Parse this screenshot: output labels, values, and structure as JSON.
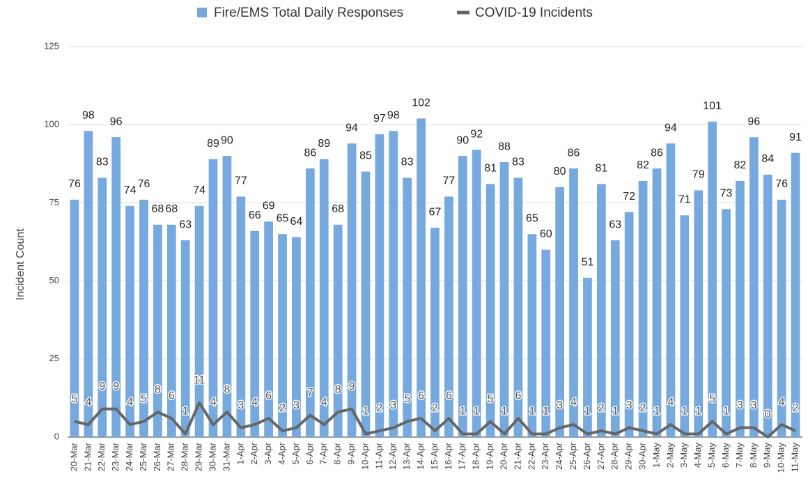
{
  "chart_data": {
    "type": "bar_line",
    "y_label": "Incident Count",
    "legend": "top",
    "grid": true,
    "ylim": [
      0,
      125
    ],
    "yticks": [
      0,
      25,
      50,
      75,
      100,
      125
    ],
    "categories": [
      "20-Mar",
      "21-Mar",
      "22-Mar",
      "23-Mar",
      "24-Mar",
      "25-Mar",
      "26-Mar",
      "27-Mar",
      "28-Mar",
      "29-Mar",
      "30-Mar",
      "31-Mar",
      "1-Apr",
      "2-Apr",
      "3-Apr",
      "4-Apr",
      "5-Apr",
      "6-Apr",
      "7-Apr",
      "8-Apr",
      "9-Apr",
      "10-Apr",
      "11-Apr",
      "12-Apr",
      "13-Apr",
      "14-Apr",
      "15-Apr",
      "16-Apr",
      "17-Apr",
      "18-Apr",
      "19-Apr",
      "20-Apr",
      "21-Apr",
      "22-Apr",
      "23-Apr",
      "24-Apr",
      "25-Apr",
      "26-Apr",
      "27-Apr",
      "28-Apr",
      "29-Apr",
      "30-Apr",
      "1-May",
      "2-May",
      "3-May",
      "4-May",
      "5-May",
      "6-May",
      "7-May",
      "8-May",
      "9-May",
      "10-May",
      "11-May"
    ],
    "series": [
      {
        "name": "Fire/EMS Total Daily Responses",
        "type": "bar",
        "color": "#76a9de",
        "values": [
          76,
          98,
          83,
          96,
          74,
          76,
          68,
          68,
          63,
          74,
          89,
          90,
          77,
          66,
          69,
          65,
          64,
          86,
          89,
          68,
          94,
          85,
          97,
          98,
          83,
          102,
          67,
          77,
          90,
          92,
          81,
          88,
          83,
          65,
          60,
          80,
          86,
          51,
          81,
          63,
          72,
          82,
          86,
          94,
          71,
          79,
          101,
          73,
          82,
          96,
          84,
          76,
          91
        ]
      },
      {
        "name": "COVID-19 Incidents",
        "type": "line",
        "color": "#666666",
        "values": [
          5,
          4,
          9,
          9,
          4,
          5,
          8,
          6,
          1,
          11,
          4,
          8,
          3,
          4,
          6,
          2,
          3,
          7,
          4,
          8,
          9,
          1,
          2,
          3,
          5,
          6,
          2,
          6,
          1,
          1,
          5,
          1,
          6,
          1,
          1,
          3,
          4,
          1,
          2,
          1,
          3,
          2,
          1,
          4,
          1,
          1,
          5,
          1,
          3,
          3,
          0,
          4,
          2
        ]
      }
    ]
  }
}
